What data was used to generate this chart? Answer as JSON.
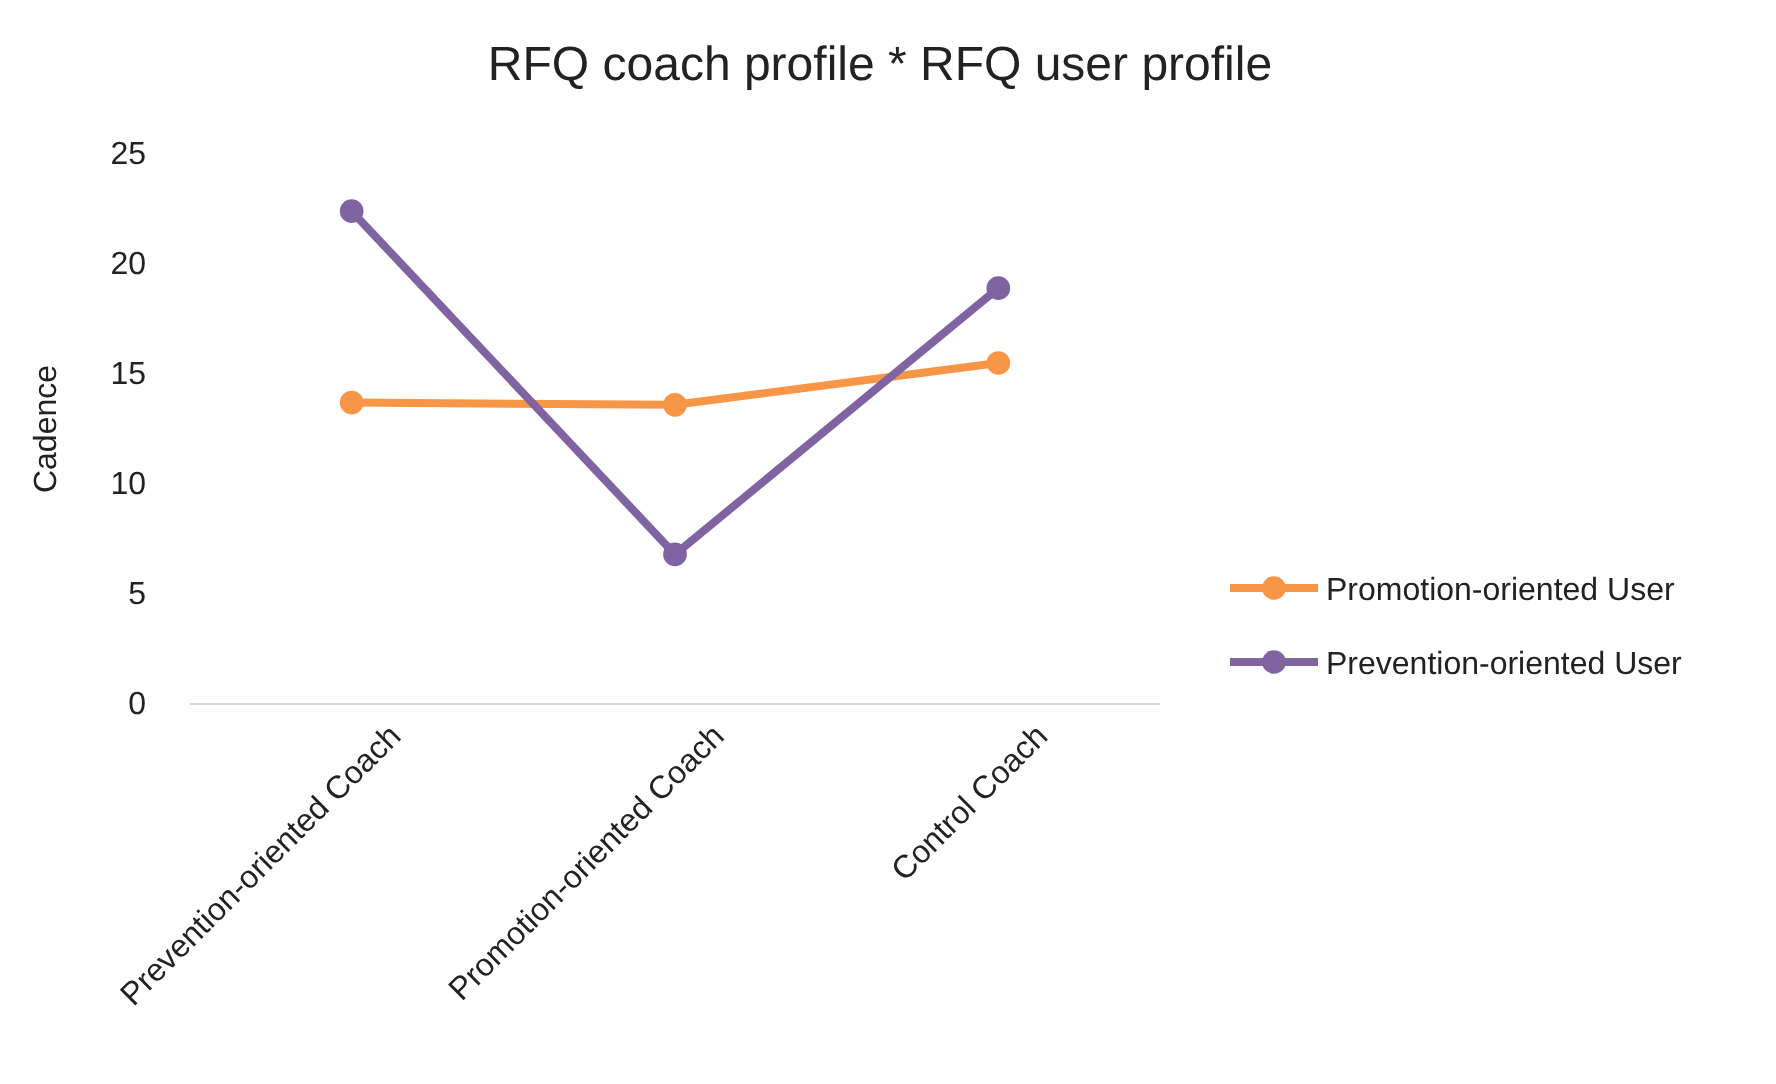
{
  "chart_data": {
    "type": "line",
    "title": "RFQ coach profile * RFQ user profile",
    "ylabel": "Cadence",
    "categories": [
      "Prevention-oriented Coach",
      "Promotion-oriented Coach",
      "Control Coach"
    ],
    "series": [
      {
        "name": "Promotion-oriented User",
        "color": "#f79646",
        "values": [
          13.7,
          13.6,
          15.5
        ]
      },
      {
        "name": "Prevention-oriented User",
        "color": "#8064a2",
        "values": [
          22.4,
          6.8,
          18.9
        ]
      }
    ],
    "ylim": [
      0,
      25
    ],
    "yticks": [
      0,
      5,
      10,
      15,
      20,
      25
    ],
    "grid": false,
    "legend": "right",
    "marker": "circle",
    "line_style": "solid"
  }
}
